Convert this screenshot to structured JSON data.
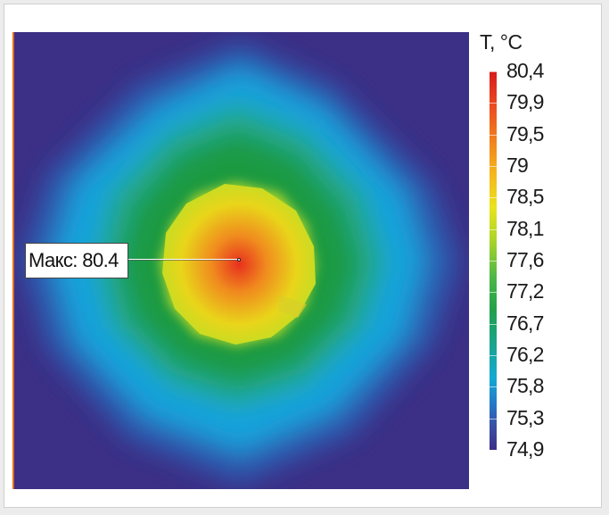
{
  "chart_data": {
    "type": "heatmap",
    "title": "",
    "colorbar_label": "T, °C",
    "colorbar_ticks": [
      "80,4",
      "79,9",
      "79,5",
      "79",
      "78,5",
      "78,1",
      "77,6",
      "77,2",
      "76,7",
      "76,2",
      "75,8",
      "75,3",
      "74,9"
    ],
    "range": [
      74.9,
      80.4
    ],
    "max_annotation": "Макс: 80.4",
    "max_value": 80.4
  }
}
